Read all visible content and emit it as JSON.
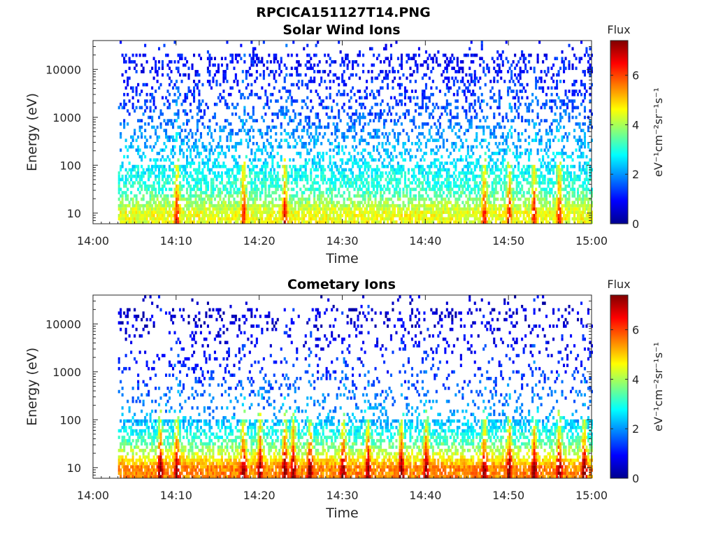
{
  "figure_title": "RPCICA151127T14.PNG",
  "chart_data": [
    {
      "type": "heatmap",
      "title": "Solar Wind Ions",
      "xlabel": "Time",
      "ylabel": "Energy (eV)",
      "x_ticks": [
        "14:00",
        "14:10",
        "14:20",
        "14:30",
        "14:40",
        "14:50",
        "15:00"
      ],
      "xlim": [
        "14:00",
        "15:00"
      ],
      "y_scale": "log",
      "ylim": [
        6,
        40000
      ],
      "y_ticks": [
        10,
        100,
        1000,
        10000
      ],
      "y_tick_labels": [
        "10",
        "100",
        "1000",
        "10000"
      ],
      "data_start": "14:03",
      "colorbar": {
        "title": "Flux",
        "label": "eV⁻¹cm⁻²sr⁻¹s⁻¹",
        "range": [
          0,
          7.4
        ],
        "ticks": [
          0,
          2,
          4,
          6
        ]
      },
      "dominant_flux_by_energy": [
        {
          "energy": 10,
          "flux": 4.5
        },
        {
          "energy": 30,
          "flux": 3.2
        },
        {
          "energy": 100,
          "flux": 2.6
        },
        {
          "energy": 1000,
          "flux": 1.6
        },
        {
          "energy": 10000,
          "flux": 1.0
        }
      ],
      "enhancement_times": [
        "14:10",
        "14:18",
        "14:23",
        "14:47",
        "14:50",
        "14:53",
        "14:56"
      ]
    },
    {
      "type": "heatmap",
      "title": "Cometary Ions",
      "xlabel": "Time",
      "ylabel": "Energy (eV)",
      "x_ticks": [
        "14:00",
        "14:10",
        "14:20",
        "14:30",
        "14:40",
        "14:50",
        "15:00"
      ],
      "xlim": [
        "14:00",
        "15:00"
      ],
      "y_scale": "log",
      "ylim": [
        6,
        40000
      ],
      "y_ticks": [
        10,
        100,
        1000,
        10000
      ],
      "y_tick_labels": [
        "10",
        "100",
        "1000",
        "10000"
      ],
      "data_start": "14:03",
      "colorbar": {
        "title": "Flux",
        "label": "eV⁻¹cm⁻²sr⁻¹s⁻¹",
        "range": [
          0,
          7.4
        ],
        "ticks": [
          0,
          2,
          4,
          6
        ]
      },
      "dominant_flux_by_energy": [
        {
          "energy": 10,
          "flux": 5.5
        },
        {
          "energy": 30,
          "flux": 3.5
        },
        {
          "energy": 100,
          "flux": 2.2
        },
        {
          "energy": 1000,
          "flux": 1.2
        },
        {
          "energy": 10000,
          "flux": 0.6
        }
      ],
      "enhancement_times": [
        "14:08",
        "14:10",
        "14:18",
        "14:20",
        "14:23",
        "14:24",
        "14:26",
        "14:30",
        "14:33",
        "14:37",
        "14:40",
        "14:47",
        "14:50",
        "14:53",
        "14:56",
        "14:59"
      ]
    }
  ]
}
